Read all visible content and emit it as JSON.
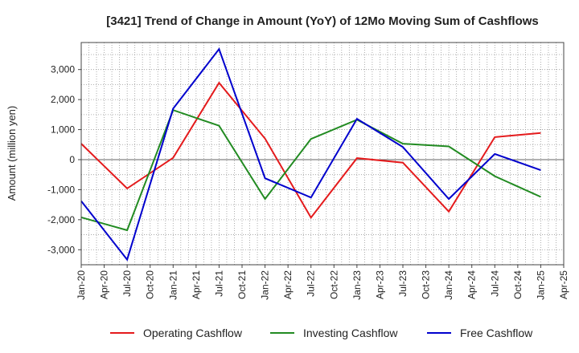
{
  "chart_data": {
    "type": "line",
    "title": "[3421]  Trend of Change in Amount (YoY) of 12Mo Moving Sum of Cashflows",
    "xlabel": "",
    "ylabel": "Amount (million yen)",
    "ylim": [
      -3500,
      3900
    ],
    "yticks": [
      -3000,
      -2000,
      -1000,
      0,
      1000,
      2000,
      3000
    ],
    "ytick_labels": [
      "-3,000",
      "-2,000",
      "-1,000",
      "0",
      "1,000",
      "2,000",
      "3,000"
    ],
    "categories": [
      "Jan-20",
      "Apr-20",
      "Jul-20",
      "Oct-20",
      "Jan-21",
      "Apr-21",
      "Jul-21",
      "Oct-21",
      "Jan-22",
      "Apr-22",
      "Jul-22",
      "Oct-22",
      "Jan-23",
      "Apr-23",
      "Jul-23",
      "Oct-23",
      "Jan-24",
      "Apr-24",
      "Jul-24",
      "Oct-24",
      "Jan-25",
      "Apr-25"
    ],
    "series": [
      {
        "name": "Operating Cashflow",
        "color": "#e41a1c",
        "x": [
          "Jan-20",
          "Jul-20",
          "Jan-21",
          "Jul-21",
          "Jan-22",
          "Jul-22",
          "Jan-23",
          "Jul-23",
          "Jan-24",
          "Jul-24",
          "Jan-25"
        ],
        "values": [
          530,
          -960,
          60,
          2560,
          700,
          -1930,
          50,
          -100,
          -1730,
          750,
          890
        ]
      },
      {
        "name": "Investing Cashflow",
        "color": "#228b22",
        "x": [
          "Jan-20",
          "Jul-20",
          "Jan-21",
          "Jul-21",
          "Jan-22",
          "Jul-22",
          "Jan-23",
          "Jul-23",
          "Jan-24",
          "Jul-24",
          "Jan-25"
        ],
        "values": [
          -1920,
          -2350,
          1650,
          1130,
          -1310,
          690,
          1330,
          530,
          440,
          -550,
          -1240
        ]
      },
      {
        "name": "Free Cashflow",
        "color": "#0000cd",
        "x": [
          "Jan-20",
          "Jul-20",
          "Jan-21",
          "Jul-21",
          "Jan-22",
          "Jul-22",
          "Jan-23",
          "Jul-23",
          "Jan-24",
          "Jul-24",
          "Jan-25"
        ],
        "values": [
          -1380,
          -3330,
          1700,
          3680,
          -620,
          -1260,
          1360,
          420,
          -1310,
          190,
          -350
        ]
      }
    ],
    "grid": true,
    "legend_position": "bottom"
  }
}
